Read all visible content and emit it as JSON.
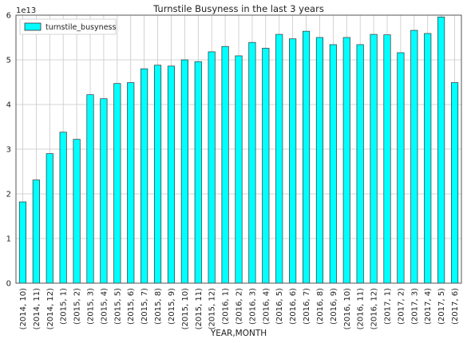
{
  "chart_data": {
    "type": "bar",
    "title": "Turnstile Busyness in the last 3 years",
    "xlabel": "YEAR,MONTH",
    "ylabel": "",
    "y_multiplier_label": "1e13",
    "ylim": [
      0,
      6
    ],
    "yticks": [
      "0",
      "1",
      "2",
      "3",
      "4",
      "5",
      "6"
    ],
    "grid": true,
    "legend_position": "top-left",
    "bar_color": "#00ffff",
    "series": [
      {
        "name": "turnstile_busyness",
        "values": [
          1.82,
          2.31,
          2.9,
          3.38,
          3.22,
          4.22,
          4.13,
          4.47,
          4.49,
          4.8,
          4.88,
          4.86,
          5.0,
          4.96,
          5.18,
          5.3,
          5.09,
          5.39,
          5.26,
          5.57,
          5.47,
          5.64,
          5.5,
          5.34,
          5.5,
          5.34,
          5.57,
          5.56,
          5.16,
          5.66,
          5.59,
          5.96,
          4.49
        ]
      }
    ],
    "categories": [
      "(2014, 10)",
      "(2014, 11)",
      "(2014, 12)",
      "(2015, 1)",
      "(2015, 2)",
      "(2015, 3)",
      "(2015, 4)",
      "(2015, 5)",
      "(2015, 6)",
      "(2015, 7)",
      "(2015, 8)",
      "(2015, 9)",
      "(2015, 10)",
      "(2015, 11)",
      "(2015, 12)",
      "(2016, 1)",
      "(2016, 2)",
      "(2016, 3)",
      "(2016, 4)",
      "(2016, 5)",
      "(2016, 6)",
      "(2016, 7)",
      "(2016, 8)",
      "(2016, 9)",
      "(2016, 10)",
      "(2016, 11)",
      "(2016, 12)",
      "(2017, 1)",
      "(2017, 2)",
      "(2017, 3)",
      "(2017, 4)",
      "(2017, 5)",
      "(2017, 6)"
    ]
  }
}
